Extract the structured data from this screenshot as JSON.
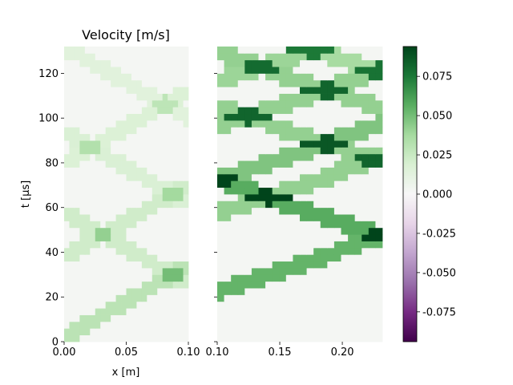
{
  "chart_data": [
    {
      "type": "heatmap",
      "title": "Velocity [m/s]",
      "xlabel": "x [m]",
      "ylabel": "t [µs]",
      "xlim": [
        0.0,
        0.1
      ],
      "ylim": [
        0,
        132
      ],
      "xticks": [
        "0.00",
        "0.05",
        "0.10"
      ],
      "yticks": [
        "0",
        "20",
        "40",
        "60",
        "80",
        "100",
        "120"
      ],
      "colormap": "PRGn",
      "value_range": [
        -0.094,
        0.094
      ],
      "waves": [
        {
          "x0": 0.0,
          "t0": 2,
          "speed_m_per_us": 0.00312,
          "width_us": 8,
          "value": 0.028
        },
        {
          "x0": 0.0,
          "t0": 38,
          "speed_m_per_us": 0.00312,
          "width_us": 8,
          "value": 0.02
        },
        {
          "x0": 0.0,
          "t0": 80,
          "speed_m_per_us": 0.00312,
          "width_us": 8,
          "value": 0.015
        },
        {
          "x0": 0.1,
          "t0": 26,
          "speed_m_per_us": -0.00312,
          "width_us": 8,
          "value": 0.02
        },
        {
          "x0": 0.1,
          "t0": 62,
          "speed_m_per_us": -0.00312,
          "width_us": 8,
          "value": 0.016
        },
        {
          "x0": 0.1,
          "t0": 100,
          "speed_m_per_us": -0.00312,
          "width_us": 8,
          "value": 0.012
        }
      ],
      "background_value": 0.002
    },
    {
      "type": "heatmap",
      "title": "",
      "xlabel": "",
      "ylabel": "",
      "xlim": [
        0.1,
        0.232
      ],
      "ylim": [
        0,
        132
      ],
      "xticks": [
        "0.10",
        "0.15",
        "0.20"
      ],
      "yticks": [],
      "colormap": "PRGn",
      "value_range": [
        -0.094,
        0.094
      ],
      "waves": [
        {
          "x0": 0.1,
          "t0": 22,
          "speed_m_per_us": 0.0052,
          "width_us": 8,
          "value": 0.052
        },
        {
          "x0": 0.232,
          "t0": 47,
          "speed_m_per_us": -0.0052,
          "width_us": 8,
          "value": 0.055
        },
        {
          "x0": 0.1,
          "t0": 57,
          "speed_m_per_us": 0.0052,
          "width_us": 8,
          "value": 0.04
        },
        {
          "x0": 0.1,
          "t0": 72,
          "speed_m_per_us": 0.0052,
          "width_us": 8,
          "value": 0.045
        },
        {
          "x0": 0.232,
          "t0": 80,
          "speed_m_per_us": -0.0052,
          "width_us": 8,
          "value": 0.04
        },
        {
          "x0": 0.1,
          "t0": 96,
          "speed_m_per_us": 0.0052,
          "width_us": 8,
          "value": 0.04
        },
        {
          "x0": 0.232,
          "t0": 104,
          "speed_m_per_us": -0.0052,
          "width_us": 8,
          "value": 0.04
        },
        {
          "x0": 0.1,
          "t0": 116,
          "speed_m_per_us": 0.0052,
          "width_us": 8,
          "value": 0.038
        },
        {
          "x0": 0.232,
          "t0": 120,
          "speed_m_per_us": -0.0052,
          "width_us": 8,
          "value": 0.035
        }
      ],
      "background_value": 0.002
    }
  ],
  "colorbar": {
    "min": -0.094,
    "max": 0.094,
    "ticks": [
      "-0.075",
      "-0.050",
      "-0.025",
      "0.000",
      "0.025",
      "0.050",
      "0.075"
    ],
    "tick_values": [
      -0.075,
      -0.05,
      -0.025,
      0.0,
      0.025,
      0.05,
      0.075
    ]
  }
}
